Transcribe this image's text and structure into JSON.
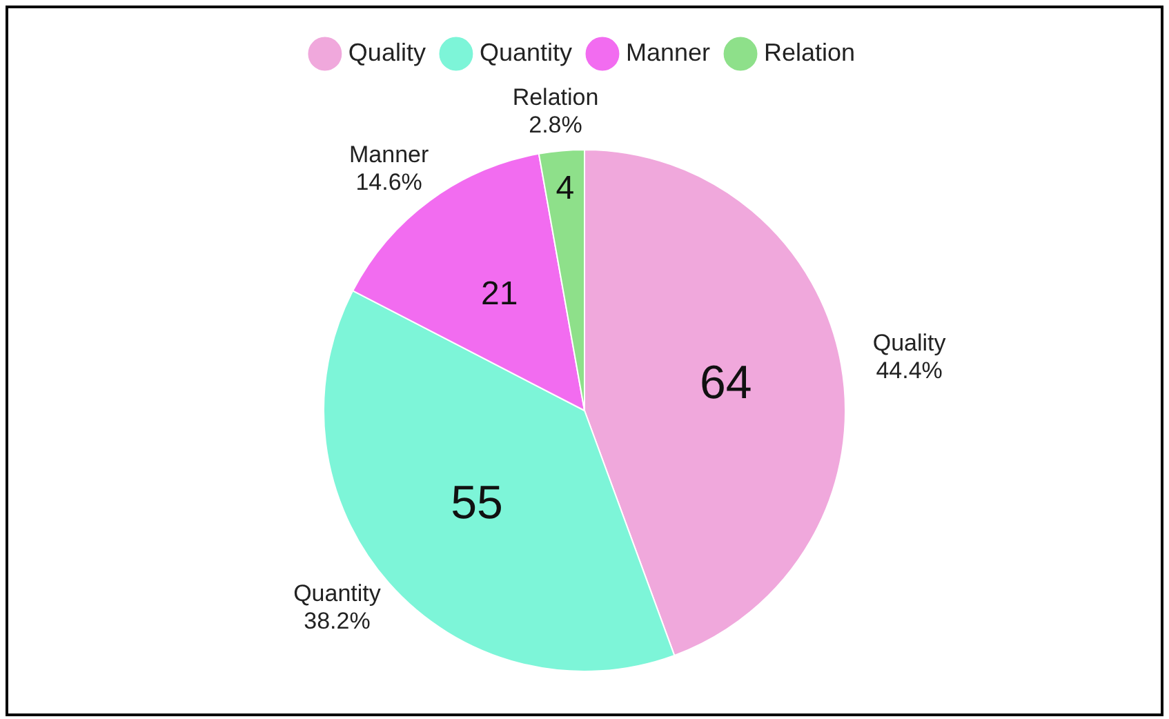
{
  "chart_data": {
    "type": "pie",
    "categories": [
      "Quality",
      "Quantity",
      "Manner",
      "Relation"
    ],
    "values": [
      44.4,
      38.2,
      14.6,
      2.8
    ],
    "colors": [
      "#f0a8dc",
      "#7df5d8",
      "#f26cf0",
      "#8ee08a"
    ],
    "value_labels": [
      "44.4%",
      "38.2%",
      "14.6%",
      "2.8%"
    ],
    "annotations": [
      {
        "text": "64",
        "x": "Quality"
      },
      {
        "text": "55",
        "x": "Quantity"
      },
      {
        "text": "21",
        "x": "Manner"
      },
      {
        "text": "4",
        "x": "Relation"
      }
    ],
    "legend": "top"
  }
}
